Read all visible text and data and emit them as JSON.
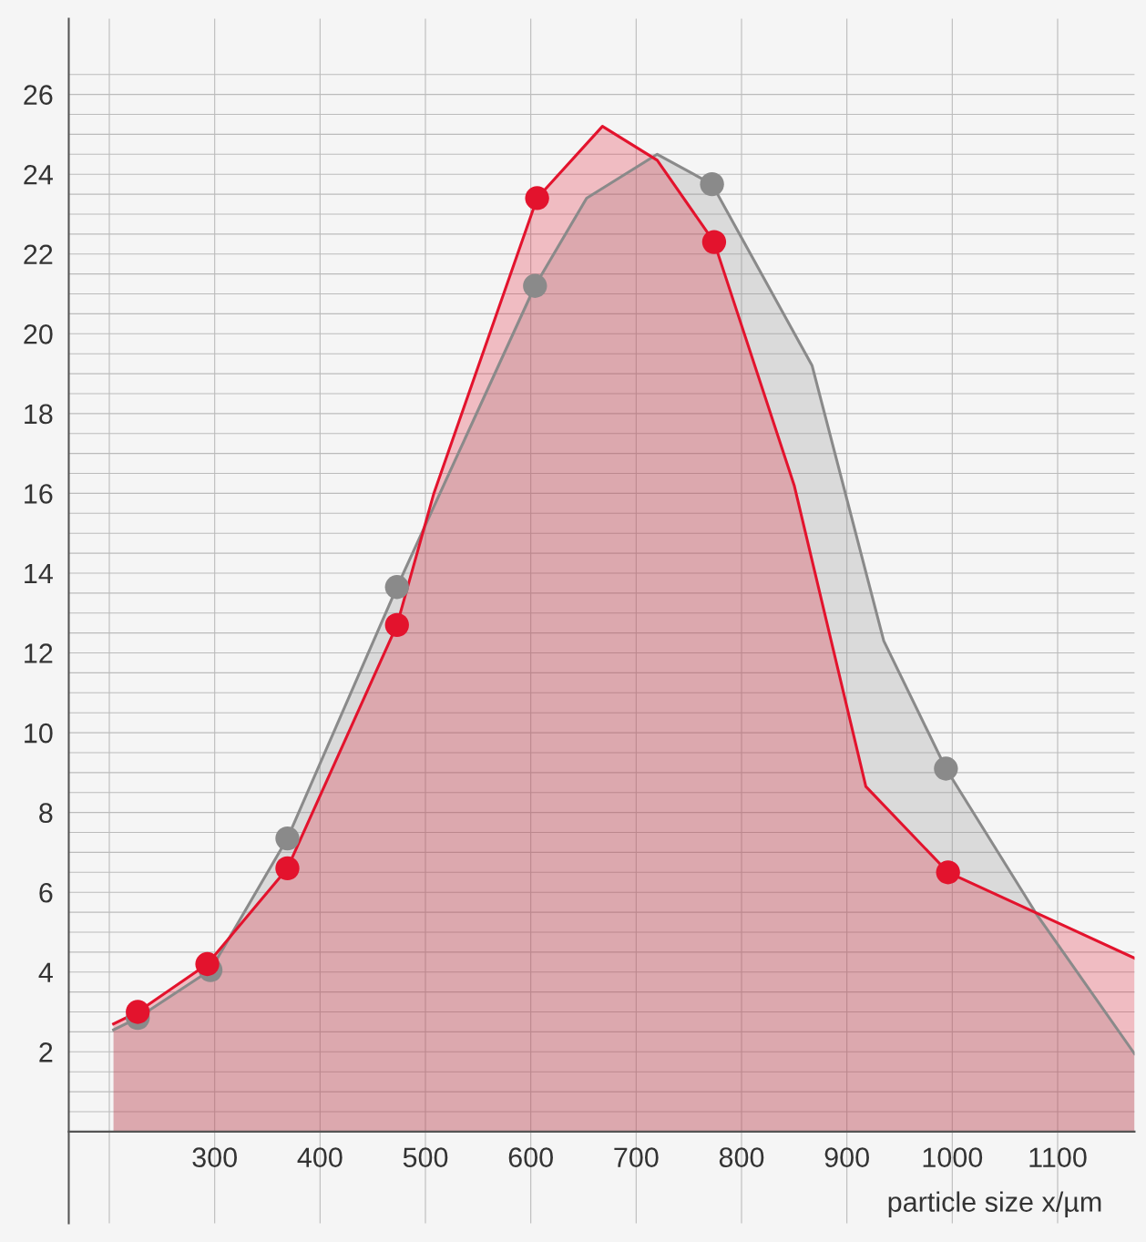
{
  "chart_data": {
    "type": "area",
    "xlabel": "particle size x/µm",
    "xlim": [
      161.5,
      1173
    ],
    "ylim": [
      -2.3,
      27.9
    ],
    "xticks": [
      {
        "value": 200,
        "label": null
      },
      300,
      400,
      500,
      600,
      700,
      800,
      900,
      1000,
      1100
    ],
    "yticks": [
      {
        "value": 0.5,
        "label": null
      },
      {
        "value": 1,
        "label": null
      },
      {
        "value": 1.5,
        "label": null
      },
      2,
      {
        "value": 2.5,
        "label": null
      },
      {
        "value": 3,
        "label": null
      },
      {
        "value": 3.5,
        "label": null
      },
      4,
      {
        "value": 4.5,
        "label": null
      },
      {
        "value": 5,
        "label": null
      },
      {
        "value": 5.5,
        "label": null
      },
      6,
      {
        "value": 6.5,
        "label": null
      },
      {
        "value": 7,
        "label": null
      },
      {
        "value": 7.5,
        "label": null
      },
      8,
      {
        "value": 8.5,
        "label": null
      },
      {
        "value": 9,
        "label": null
      },
      {
        "value": 9.5,
        "label": null
      },
      10,
      {
        "value": 10.5,
        "label": null
      },
      {
        "value": 11,
        "label": null
      },
      {
        "value": 11.5,
        "label": null
      },
      12,
      {
        "value": 12.5,
        "label": null
      },
      {
        "value": 13,
        "label": null
      },
      {
        "value": 13.5,
        "label": null
      },
      14,
      {
        "value": 14.5,
        "label": null
      },
      {
        "value": 15,
        "label": null
      },
      {
        "value": 15.5,
        "label": null
      },
      16,
      {
        "value": 16.5,
        "label": null
      },
      {
        "value": 17,
        "label": null
      },
      {
        "value": 17.5,
        "label": null
      },
      18,
      {
        "value": 18.5,
        "label": null
      },
      {
        "value": 19,
        "label": null
      },
      {
        "value": 19.5,
        "label": null
      },
      20,
      {
        "value": 20.5,
        "label": null
      },
      {
        "value": 21,
        "label": null
      },
      {
        "value": 21.5,
        "label": null
      },
      22,
      {
        "value": 22.5,
        "label": null
      },
      {
        "value": 23,
        "label": null
      },
      {
        "value": 23.5,
        "label": null
      },
      24,
      {
        "value": 24.5,
        "label": null
      },
      {
        "value": 25,
        "label": null
      },
      {
        "value": 25.5,
        "label": null
      },
      26,
      {
        "value": 26.5,
        "label": null
      }
    ],
    "grid": true,
    "legend": false,
    "series": [
      {
        "color": "#8a8a8a",
        "x": [
          204,
          227,
          296,
          369,
          473,
          604,
          653,
          720,
          772,
          867,
          935,
          994,
          1080,
          1173
        ],
        "values": [
          2.55,
          2.85,
          4.05,
          7.35,
          13.65,
          21.2,
          23.4,
          24.5,
          23.75,
          19.2,
          12.3,
          9.1,
          5.45,
          1.95
        ]
      },
      {
        "color": "#e3132d",
        "x": [
          204,
          227,
          293,
          369,
          473,
          508,
          606,
          668,
          720,
          774,
          850,
          918,
          996,
          1173
        ],
        "values": [
          2.7,
          3.0,
          4.2,
          6.6,
          12.7,
          16.0,
          23.4,
          25.2,
          24.35,
          22.3,
          16.2,
          8.65,
          6.5,
          4.35
        ]
      },
      {
        "type": "scatter",
        "color": "#8a8a8a",
        "marker": "circle",
        "x": [
          227,
          296,
          369,
          473,
          604,
          772,
          994
        ],
        "values": [
          2.85,
          4.05,
          7.35,
          13.65,
          21.2,
          23.75,
          9.1
        ]
      },
      {
        "type": "scatter",
        "color": "#e3132d",
        "marker": "circle",
        "x": [
          227,
          293,
          369,
          473,
          606,
          774,
          996
        ],
        "values": [
          3.0,
          4.2,
          6.6,
          12.7,
          23.4,
          22.3,
          6.5
        ]
      }
    ]
  }
}
